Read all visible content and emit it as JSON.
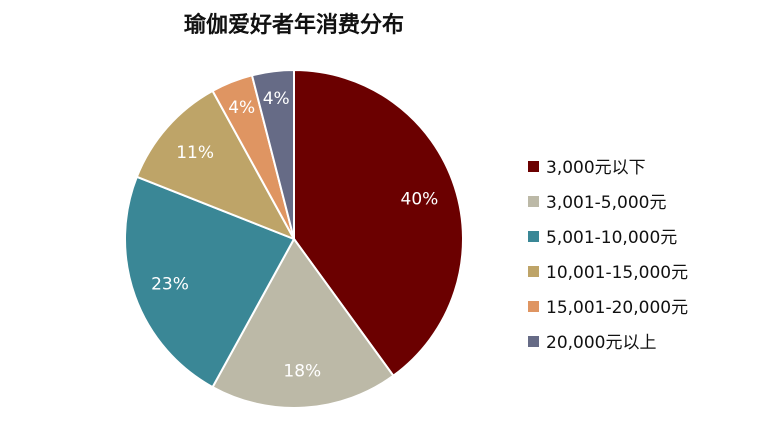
{
  "chart_data": {
    "type": "pie",
    "title": "瑜伽爱好者年消费分布",
    "categories": [
      "3,000元以下",
      "3,001-5,000元",
      "5,001-10,000元",
      "10,001-15,000元",
      "15,001-20,000元",
      "20,000元以上"
    ],
    "values": [
      40,
      18,
      23,
      11,
      4,
      4
    ],
    "value_labels": [
      "40%",
      "18%",
      "23%",
      "11%",
      "4%",
      "4%"
    ],
    "colors": [
      "#6b0000",
      "#bcb9a7",
      "#3a8796",
      "#bea468",
      "#df9562",
      "#666b86"
    ],
    "start_angle": "12 o'clock",
    "direction": "clockwise",
    "legend_position": "right"
  }
}
